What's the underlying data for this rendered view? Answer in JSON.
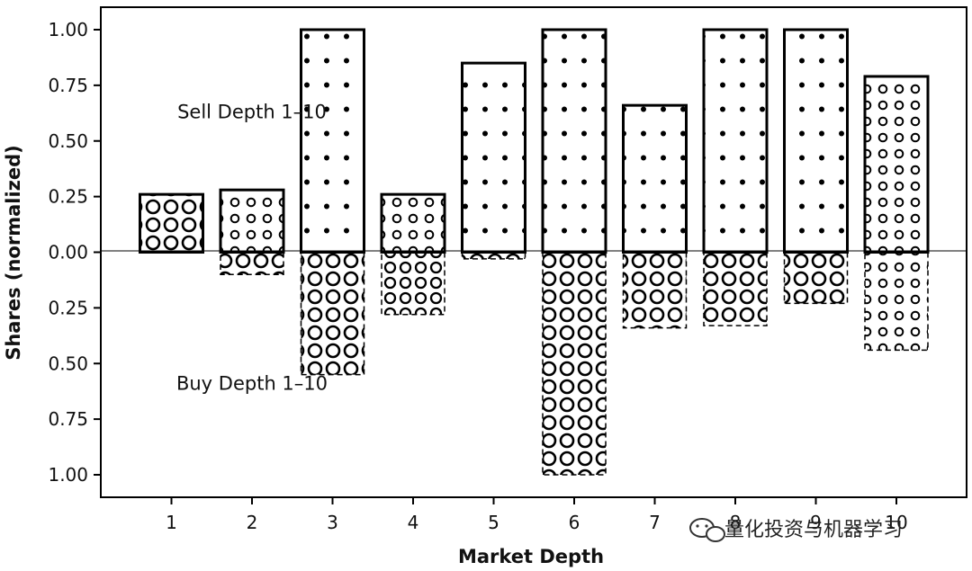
{
  "chart_data": {
    "type": "bar",
    "xlabel": "Market Depth",
    "ylabel": "Shares (normalized)",
    "categories": [
      "1",
      "2",
      "3",
      "4",
      "5",
      "6",
      "7",
      "8",
      "9",
      "10"
    ],
    "ylim": [
      -1.0,
      1.0
    ],
    "yticks": [
      {
        "value": 1.0,
        "label": "1.00"
      },
      {
        "value": 0.75,
        "label": "0.75"
      },
      {
        "value": 0.5,
        "label": "0.50"
      },
      {
        "value": 0.25,
        "label": "0.25"
      },
      {
        "value": 0.0,
        "label": "0.00"
      },
      {
        "value": -0.25,
        "label": "0.25"
      },
      {
        "value": -0.5,
        "label": "0.50"
      },
      {
        "value": -0.75,
        "label": "0.75"
      },
      {
        "value": -1.0,
        "label": "1.00"
      }
    ],
    "grid": false,
    "series": [
      {
        "name": "Sell Depth 1–10",
        "values": [
          0.26,
          0.28,
          1.0,
          0.26,
          0.85,
          1.0,
          0.66,
          1.0,
          1.0,
          0.79
        ],
        "patterns": [
          "circles-large",
          "circles-small",
          "dots",
          "circles-small",
          "dots",
          "dots",
          "dots",
          "dots",
          "dots",
          "circles-small"
        ]
      },
      {
        "name": "Buy Depth 1–10",
        "values": [
          0.0,
          -0.1,
          -0.55,
          -0.28,
          -0.03,
          -1.0,
          -0.34,
          -0.33,
          -0.23,
          -0.44
        ],
        "patterns": [
          "circles-large",
          "circles-large",
          "circles-large",
          "circles-medium",
          "circles-large",
          "circles-large",
          "circles-large",
          "circles-large",
          "circles-large",
          "circles-small"
        ]
      }
    ],
    "annotations": [
      {
        "text": "Sell Depth 1–10",
        "x": 2.0,
        "y": 0.63
      },
      {
        "text": "Buy Depth 1–10",
        "x": 2.0,
        "y": -0.59
      }
    ]
  },
  "watermark": {
    "text": "量化投资与机器学习",
    "icon": "wechat-icon"
  }
}
